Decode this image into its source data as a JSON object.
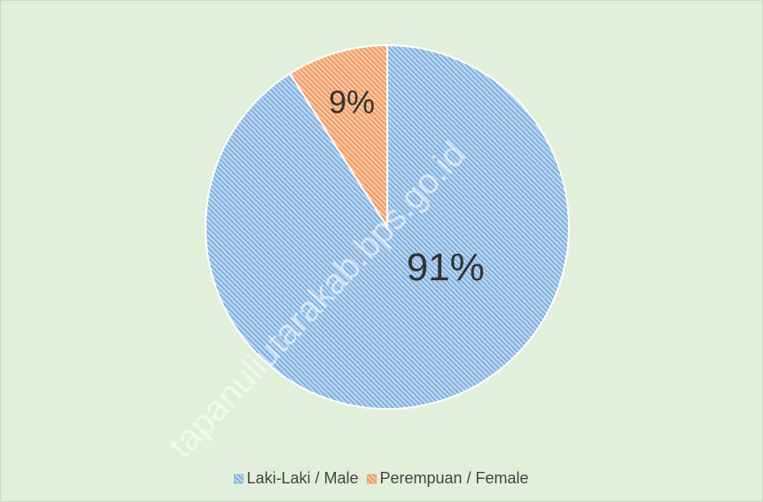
{
  "chart_data": {
    "type": "pie",
    "categories": [
      "Laki-Laki / Male",
      "Perempuan / Female"
    ],
    "values": [
      91,
      9
    ],
    "value_labels": [
      "91%",
      "9%"
    ],
    "colors": [
      "#5b9bd5",
      "#ed7d31"
    ],
    "legend": "bottom",
    "watermark": "tapanuliutarakab.bps.go.id"
  }
}
